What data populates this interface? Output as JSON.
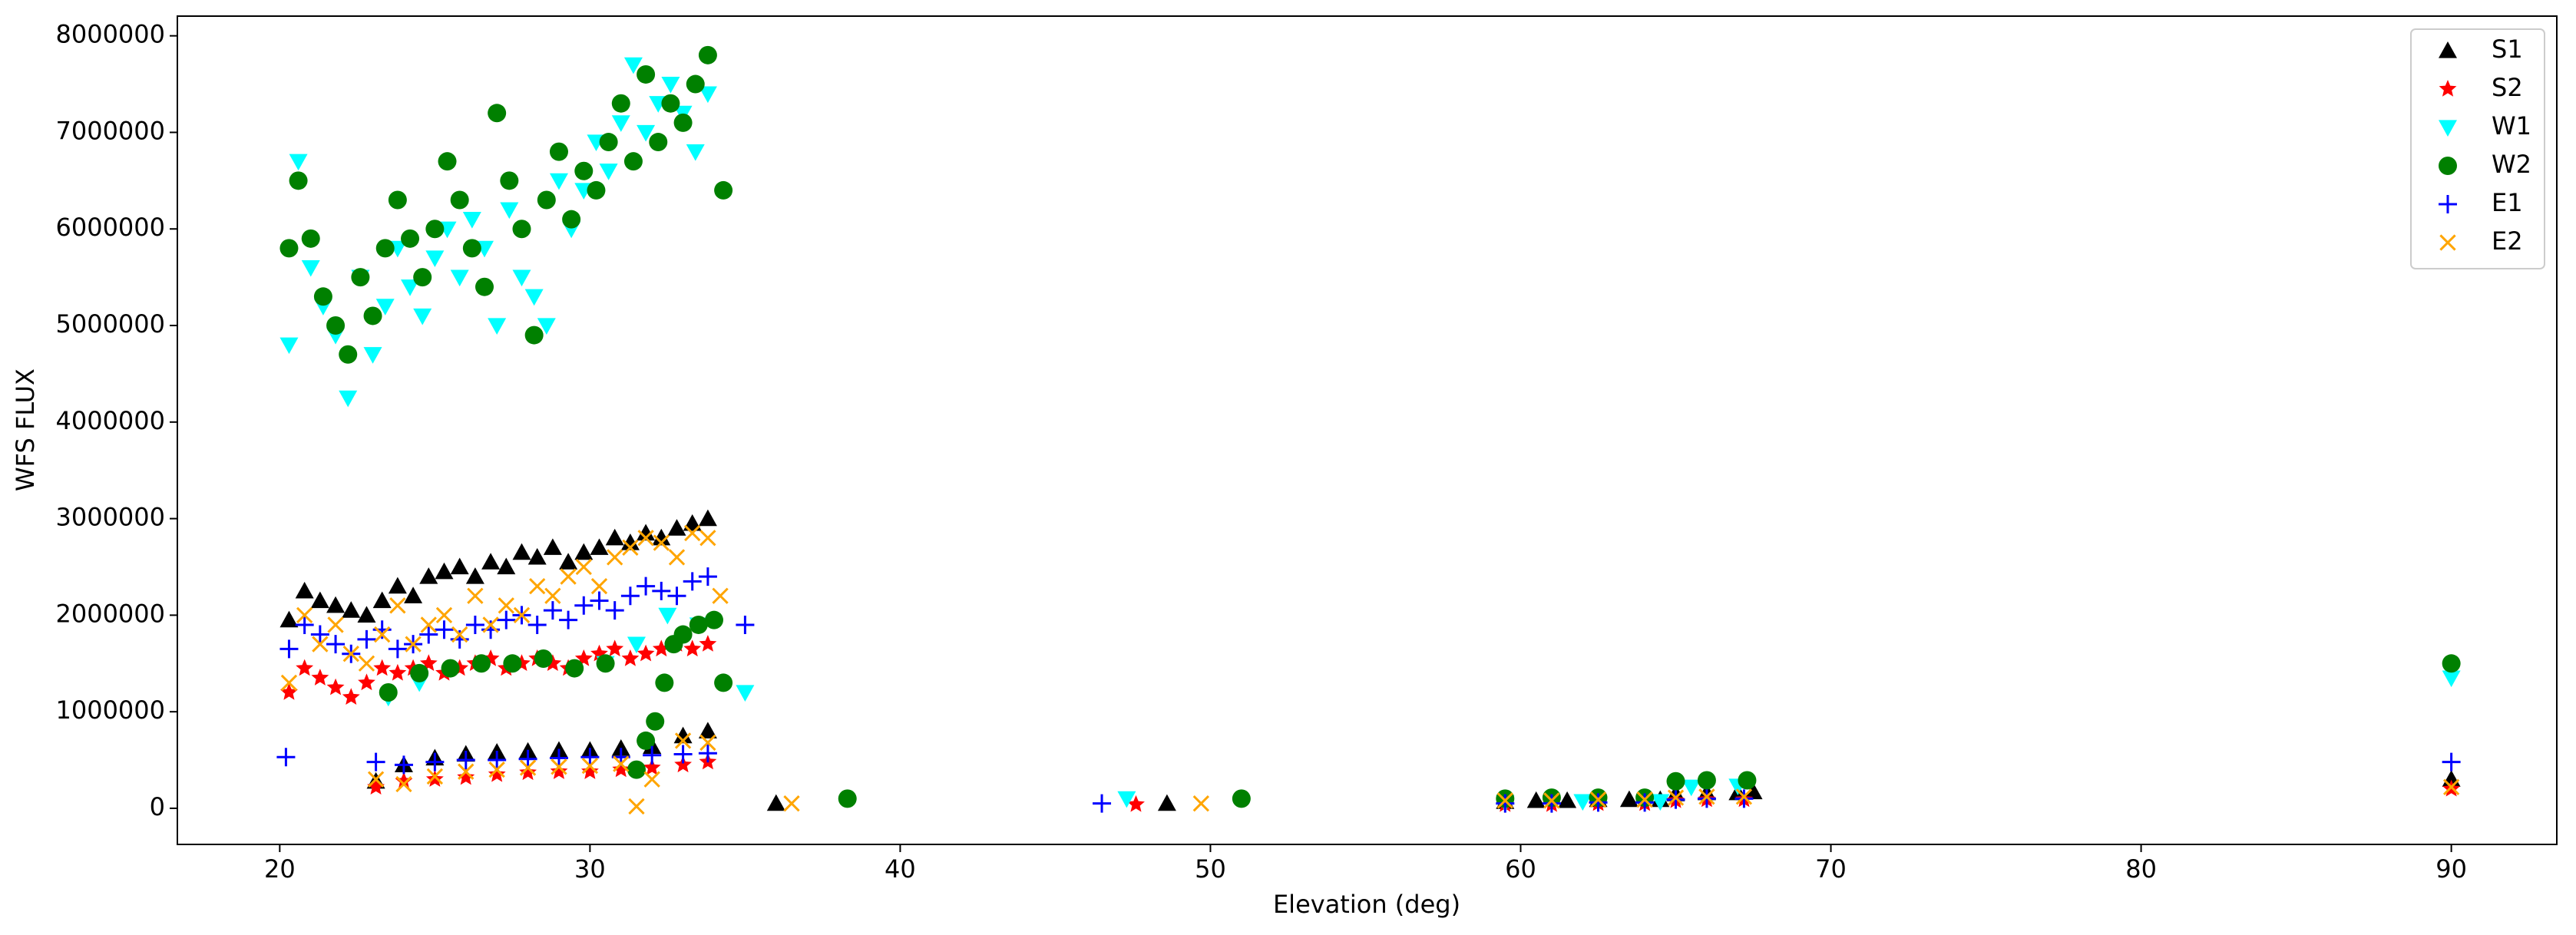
{
  "chart_data": {
    "type": "scatter",
    "xlabel": "Elevation (deg)",
    "ylabel": "WFS FLUX",
    "xlim": [
      16.7,
      93.4
    ],
    "ylim": [
      -374000,
      8204000
    ],
    "xticks": [
      20,
      30,
      40,
      50,
      60,
      70,
      80,
      90
    ],
    "yticks": [
      0,
      1000000,
      2000000,
      3000000,
      4000000,
      5000000,
      6000000,
      7000000,
      8000000
    ],
    "grid": false,
    "legend": "upper right",
    "series": [
      {
        "name": "S1",
        "color": "#000000",
        "marker": "^",
        "x": [
          20.3,
          20.8,
          21.3,
          21.8,
          22.3,
          22.8,
          23.3,
          23.8,
          24.3,
          24.8,
          25.3,
          25.8,
          26.3,
          26.8,
          27.3,
          27.8,
          28.3,
          28.8,
          29.3,
          29.8,
          30.3,
          30.8,
          31.3,
          31.8,
          32.3,
          32.8,
          33.3,
          33.8,
          23.1,
          24,
          25,
          26,
          27,
          28,
          29,
          30,
          31,
          32,
          33,
          33.8,
          36,
          48.6,
          59.5,
          60.5,
          61.5,
          62.5,
          63.5,
          64.5,
          65,
          66,
          67,
          67.5,
          90
        ],
        "values": [
          1950000,
          2250000,
          2150000,
          2100000,
          2050000,
          2000000,
          2150000,
          2300000,
          2200000,
          2400000,
          2450000,
          2500000,
          2400000,
          2550000,
          2500000,
          2650000,
          2600000,
          2700000,
          2550000,
          2650000,
          2700000,
          2800000,
          2750000,
          2850000,
          2800000,
          2900000,
          2950000,
          3000000,
          280000,
          450000,
          520000,
          560000,
          580000,
          590000,
          600000,
          600000,
          620000,
          640000,
          750000,
          800000,
          50000,
          50000,
          70000,
          80000,
          80000,
          90000,
          90000,
          90000,
          150000,
          160000,
          160000,
          170000,
          300000
        ]
      },
      {
        "name": "S2",
        "color": "#ff0000",
        "marker": "*",
        "x": [
          20.3,
          20.8,
          21.3,
          21.8,
          22.3,
          22.8,
          23.3,
          23.8,
          24.3,
          24.8,
          25.3,
          25.8,
          26.3,
          26.8,
          27.3,
          27.8,
          28.3,
          28.8,
          29.3,
          29.8,
          30.3,
          30.8,
          31.3,
          31.8,
          32.3,
          32.8,
          33.3,
          33.8,
          23.1,
          24,
          25,
          26,
          27,
          28,
          29,
          30,
          31,
          32,
          33,
          33.8,
          47.6,
          59.5,
          61,
          62.5,
          64,
          65,
          66,
          67.2,
          90
        ],
        "values": [
          1200000,
          1450000,
          1350000,
          1250000,
          1150000,
          1300000,
          1450000,
          1400000,
          1450000,
          1500000,
          1400000,
          1450000,
          1500000,
          1550000,
          1450000,
          1500000,
          1550000,
          1500000,
          1450000,
          1550000,
          1600000,
          1650000,
          1550000,
          1600000,
          1650000,
          1700000,
          1650000,
          1700000,
          220000,
          280000,
          300000,
          320000,
          350000,
          370000,
          380000,
          380000,
          400000,
          420000,
          450000,
          480000,
          40000,
          40000,
          40000,
          50000,
          50000,
          80000,
          90000,
          90000,
          200000
        ]
      },
      {
        "name": "W1",
        "color": "#00ffff",
        "marker": "v",
        "x": [
          20.3,
          20.6,
          21,
          21.4,
          21.8,
          22.2,
          22.6,
          23,
          23.4,
          23.8,
          24.2,
          24.6,
          25,
          25.4,
          25.8,
          26.2,
          26.6,
          27,
          27.4,
          27.8,
          28.2,
          28.6,
          29,
          29.4,
          29.8,
          30.2,
          30.6,
          31,
          31.4,
          31.8,
          32.2,
          32.6,
          33,
          33.4,
          33.8,
          23.5,
          24.5,
          30.5,
          31.5,
          32.5,
          33.5,
          35,
          47.3,
          59.5,
          62,
          64.5,
          65.5,
          67,
          90
        ],
        "values": [
          4800000,
          6700000,
          5600000,
          5200000,
          4900000,
          4250000,
          5500000,
          4700000,
          5200000,
          5800000,
          5400000,
          5100000,
          5700000,
          6000000,
          5500000,
          6100000,
          5800000,
          5000000,
          6200000,
          5500000,
          5300000,
          5000000,
          6500000,
          6000000,
          6400000,
          6900000,
          6600000,
          7100000,
          7700000,
          7000000,
          7300000,
          7500000,
          7200000,
          6800000,
          7400000,
          1150000,
          1300000,
          1500000,
          1700000,
          2000000,
          1900000,
          1200000,
          100000,
          60000,
          70000,
          70000,
          220000,
          230000,
          1350000
        ]
      },
      {
        "name": "W2",
        "color": "#008000",
        "marker": "o",
        "x": [
          20.3,
          20.6,
          21,
          21.4,
          21.8,
          22.2,
          22.6,
          23,
          23.4,
          23.8,
          24.2,
          24.6,
          25,
          25.4,
          25.8,
          26.2,
          26.6,
          27,
          27.4,
          27.8,
          28.2,
          28.6,
          29,
          29.4,
          29.8,
          30.2,
          30.6,
          31,
          31.4,
          31.8,
          32.2,
          32.6,
          33,
          33.4,
          33.8,
          34.3,
          23.5,
          24.5,
          25.5,
          26.5,
          27.5,
          28.5,
          29.5,
          30.5,
          31.5,
          31.8,
          32.1,
          32.4,
          32.7,
          33,
          33.5,
          34,
          34.3,
          38.3,
          51,
          59.5,
          61,
          62.5,
          64,
          65,
          66,
          67.3,
          90
        ],
        "values": [
          5800000,
          6500000,
          5900000,
          5300000,
          5000000,
          4700000,
          5500000,
          5100000,
          5800000,
          6300000,
          5900000,
          5500000,
          6000000,
          6700000,
          6300000,
          5800000,
          5400000,
          7200000,
          6500000,
          6000000,
          4900000,
          6300000,
          6800000,
          6100000,
          6600000,
          6400000,
          6900000,
          7300000,
          6700000,
          7600000,
          6900000,
          7300000,
          7100000,
          7500000,
          7800000,
          6400000,
          1200000,
          1400000,
          1450000,
          1500000,
          1500000,
          1550000,
          1450000,
          1500000,
          400000,
          700000,
          900000,
          1300000,
          1700000,
          1800000,
          1900000,
          1950000,
          1300000,
          100000,
          100000,
          100000,
          110000,
          110000,
          110000,
          280000,
          290000,
          290000,
          1500000
        ]
      },
      {
        "name": "E1",
        "color": "#0000ff",
        "marker": "+",
        "x": [
          20.3,
          20.8,
          21.3,
          21.8,
          22.3,
          22.8,
          23.3,
          23.8,
          24.3,
          24.8,
          25.3,
          25.8,
          26.3,
          26.8,
          27.3,
          27.8,
          28.3,
          28.8,
          29.3,
          29.8,
          30.3,
          30.8,
          31.3,
          31.8,
          32.3,
          32.8,
          33.3,
          33.8,
          20.2,
          23.1,
          24,
          25,
          26,
          27,
          28,
          29,
          30,
          31,
          32,
          33,
          33.8,
          35,
          46.5,
          59.5,
          61,
          62.5,
          64,
          65,
          66,
          67.2,
          90
        ],
        "values": [
          1650000,
          1900000,
          1800000,
          1700000,
          1600000,
          1750000,
          1850000,
          1650000,
          1700000,
          1800000,
          1850000,
          1750000,
          1900000,
          1850000,
          1950000,
          2000000,
          1900000,
          2050000,
          1950000,
          2100000,
          2150000,
          2050000,
          2200000,
          2300000,
          2250000,
          2200000,
          2350000,
          2400000,
          530000,
          480000,
          450000,
          480000,
          500000,
          500000,
          510000,
          520000,
          530000,
          530000,
          550000,
          560000,
          570000,
          1900000,
          50000,
          50000,
          50000,
          60000,
          60000,
          90000,
          100000,
          100000,
          480000
        ]
      },
      {
        "name": "E2",
        "color": "#ffa500",
        "marker": "x",
        "x": [
          20.3,
          20.8,
          21.3,
          21.8,
          22.3,
          22.8,
          23.3,
          23.8,
          24.3,
          24.8,
          25.3,
          25.8,
          26.3,
          26.8,
          27.3,
          27.8,
          28.3,
          28.8,
          29.3,
          29.8,
          30.3,
          30.8,
          31.3,
          31.8,
          32.3,
          32.8,
          33.3,
          33.8,
          34.2,
          23.1,
          24,
          25,
          26,
          27,
          28,
          29,
          30,
          31,
          31.5,
          32,
          33,
          33.8,
          36.5,
          49.7,
          59.5,
          61,
          62.5,
          64,
          65,
          66,
          67.2,
          90
        ],
        "values": [
          1300000,
          2000000,
          1700000,
          1900000,
          1600000,
          1500000,
          1800000,
          2100000,
          1700000,
          1900000,
          2000000,
          1800000,
          2200000,
          1900000,
          2100000,
          2000000,
          2300000,
          2200000,
          2400000,
          2500000,
          2300000,
          2600000,
          2700000,
          2800000,
          2750000,
          2600000,
          2850000,
          2800000,
          2200000,
          300000,
          250000,
          330000,
          380000,
          400000,
          420000,
          430000,
          440000,
          460000,
          20000,
          300000,
          700000,
          680000,
          50000,
          50000,
          80000,
          80000,
          90000,
          90000,
          110000,
          120000,
          120000,
          220000
        ]
      }
    ]
  }
}
